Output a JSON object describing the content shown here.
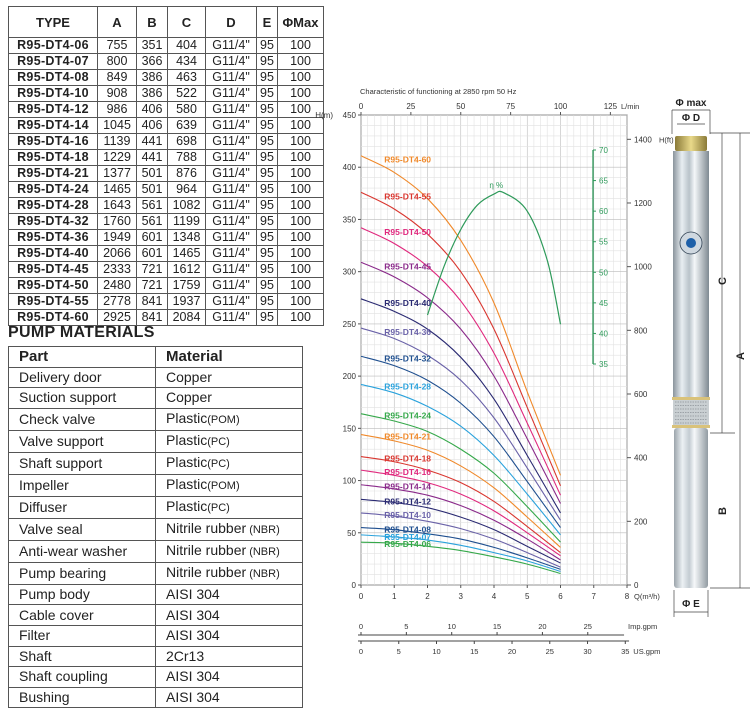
{
  "spec_table": {
    "headers": [
      "TYPE",
      "A",
      "B",
      "C",
      "D",
      "E",
      "ΦMax"
    ],
    "rows": [
      [
        "R95-DT4-06",
        "755",
        "351",
        "404",
        "G11/4\"",
        "95",
        "100"
      ],
      [
        "R95-DT4-07",
        "800",
        "366",
        "434",
        "G11/4\"",
        "95",
        "100"
      ],
      [
        "R95-DT4-08",
        "849",
        "386",
        "463",
        "G11/4\"",
        "95",
        "100"
      ],
      [
        "R95-DT4-10",
        "908",
        "386",
        "522",
        "G11/4\"",
        "95",
        "100"
      ],
      [
        "R95-DT4-12",
        "986",
        "406",
        "580",
        "G11/4\"",
        "95",
        "100"
      ],
      [
        "R95-DT4-14",
        "1045",
        "406",
        "639",
        "G11/4\"",
        "95",
        "100"
      ],
      [
        "R95-DT4-16",
        "1139",
        "441",
        "698",
        "G11/4\"",
        "95",
        "100"
      ],
      [
        "R95-DT4-18",
        "1229",
        "441",
        "788",
        "G11/4\"",
        "95",
        "100"
      ],
      [
        "R95-DT4-21",
        "1377",
        "501",
        "876",
        "G11/4\"",
        "95",
        "100"
      ],
      [
        "R95-DT4-24",
        "1465",
        "501",
        "964",
        "G11/4\"",
        "95",
        "100"
      ],
      [
        "R95-DT4-28",
        "1643",
        "561",
        "1082",
        "G11/4\"",
        "95",
        "100"
      ],
      [
        "R95-DT4-32",
        "1760",
        "561",
        "1199",
        "G11/4\"",
        "95",
        "100"
      ],
      [
        "R95-DT4-36",
        "1949",
        "601",
        "1348",
        "G11/4\"",
        "95",
        "100"
      ],
      [
        "R95-DT4-40",
        "2066",
        "601",
        "1465",
        "G11/4\"",
        "95",
        "100"
      ],
      [
        "R95-DT4-45",
        "2333",
        "721",
        "1612",
        "G11/4\"",
        "95",
        "100"
      ],
      [
        "R95-DT4-50",
        "2480",
        "721",
        "1759",
        "G11/4\"",
        "95",
        "100"
      ],
      [
        "R95-DT4-55",
        "2778",
        "841",
        "1937",
        "G11/4\"",
        "95",
        "100"
      ],
      [
        "R95-DT4-60",
        "2925",
        "841",
        "2084",
        "G11/4\"",
        "95",
        "100"
      ]
    ]
  },
  "materials": {
    "title": "PUMP MATERIALS",
    "headers": [
      "Part",
      "Material"
    ],
    "rows": [
      {
        "part": "Delivery door",
        "material": "Copper",
        "note": ""
      },
      {
        "part": "Suction support",
        "material": "Copper",
        "note": ""
      },
      {
        "part": "Check valve",
        "material": "Plastic",
        "note": "(POM)"
      },
      {
        "part": "Valve support",
        "material": "Plastic",
        "note": "(PC)"
      },
      {
        "part": "Shaft support",
        "material": "Plastic",
        "note": "(PC)"
      },
      {
        "part": "Impeller",
        "material": "Plastic",
        "note": "(POM)"
      },
      {
        "part": "Diffuser",
        "material": "Plastic",
        "note": "(PC)"
      },
      {
        "part": "Valve seal",
        "material": "Nitrile rubber",
        "note": " (NBR)"
      },
      {
        "part": "Anti-wear washer",
        "material": "Nitrile rubber",
        "note": " (NBR)"
      },
      {
        "part": "Pump bearing",
        "material": "Nitrile rubber",
        "note": " (NBR)"
      },
      {
        "part": "Pump  body",
        "material": "AISI 304",
        "note": ""
      },
      {
        "part": "Cable cover",
        "material": "AISI 304",
        "note": ""
      },
      {
        "part": "Filter",
        "material": "AISI 304",
        "note": ""
      },
      {
        "part": "Shaft",
        "material": "2Cr13",
        "note": ""
      },
      {
        "part": "Shaft coupling",
        "material": "AISI 304",
        "note": ""
      },
      {
        "part": "Bushing",
        "material": "AISI 304",
        "note": ""
      }
    ]
  },
  "chart_data": {
    "type": "line",
    "title": "Characteristic of  functioning at 2850 rpm 50 Hz",
    "xlabel": "Q(m³/h)",
    "ylabel": "H(m)",
    "xlim": [
      0,
      8
    ],
    "ylim": [
      0,
      450
    ],
    "x_ticks": [
      0,
      1,
      2,
      3,
      4,
      5,
      6,
      7,
      8
    ],
    "y_ticks": [
      0,
      50,
      100,
      150,
      200,
      250,
      300,
      350,
      400,
      450
    ],
    "top_axis": {
      "label": "L/min",
      "ticks": [
        0,
        25,
        50,
        75,
        100,
        125
      ]
    },
    "right_axis": {
      "label": "H(ft)",
      "ticks": [
        0,
        200,
        400,
        600,
        800,
        1000,
        1200,
        1400
      ]
    },
    "efficiency_axis": {
      "label": "η %",
      "ticks": [
        35,
        40,
        45,
        50,
        55,
        60,
        65,
        70
      ]
    },
    "bottom_scales": [
      {
        "label": "Imp.gpm",
        "ticks": [
          0,
          5,
          10,
          15,
          20,
          25
        ]
      },
      {
        "label": "US.gpm",
        "ticks": [
          0,
          5,
          10,
          15,
          20,
          25,
          30,
          35
        ]
      }
    ],
    "grid": true,
    "x": [
      0,
      1,
      2,
      3,
      4,
      5,
      6
    ],
    "series": [
      {
        "name": "R95-DT4-60",
        "color": "#f0892a",
        "values": [
          411,
          395,
          370,
          330,
          270,
          185,
          105
        ]
      },
      {
        "name": "R95-DT4-55",
        "color": "#d9362f",
        "values": [
          376,
          360,
          336,
          300,
          245,
          170,
          95
        ]
      },
      {
        "name": "R95-DT4-50",
        "color": "#e0287d",
        "values": [
          342,
          327,
          305,
          272,
          222,
          155,
          86
        ]
      },
      {
        "name": "R95-DT4-45",
        "color": "#8a2a8a",
        "values": [
          309,
          295,
          275,
          245,
          200,
          140,
          78
        ]
      },
      {
        "name": "R95-DT4-40",
        "color": "#2a2a72",
        "values": [
          274,
          262,
          245,
          218,
          178,
          124,
          69
        ]
      },
      {
        "name": "R95-DT4-36",
        "color": "#6a62a8",
        "values": [
          246,
          236,
          220,
          196,
          160,
          112,
          62
        ]
      },
      {
        "name": "R95-DT4-32",
        "color": "#1f4f8f",
        "values": [
          219,
          210,
          196,
          174,
          142,
          99,
          55
        ]
      },
      {
        "name": "R95-DT4-28",
        "color": "#2aa2dc",
        "values": [
          192,
          184,
          171,
          152,
          124,
          87,
          48
        ]
      },
      {
        "name": "R95-DT4-24",
        "color": "#35a84a",
        "values": [
          164,
          157,
          147,
          130,
          107,
          75,
          41
        ]
      },
      {
        "name": "R95-DT4-21",
        "color": "#f0892a",
        "values": [
          144,
          138,
          129,
          114,
          93,
          65,
          36
        ]
      },
      {
        "name": "R95-DT4-18",
        "color": "#d9362f",
        "values": [
          123,
          118,
          110,
          98,
          80,
          56,
          31
        ]
      },
      {
        "name": "R95-DT4-16",
        "color": "#e0287d",
        "values": [
          110,
          105,
          98,
          87,
          71,
          50,
          28
        ]
      },
      {
        "name": "R95-DT4-14",
        "color": "#8a2a8a",
        "values": [
          96,
          92,
          86,
          76,
          62,
          44,
          24
        ]
      },
      {
        "name": "R95-DT4-12",
        "color": "#2a2a72",
        "values": [
          82,
          79,
          74,
          65,
          53,
          37,
          21
        ]
      },
      {
        "name": "R95-DT4-10",
        "color": "#6a62a8",
        "values": [
          69,
          66,
          61,
          54,
          44,
          31,
          17
        ]
      },
      {
        "name": "R95-DT4-08",
        "color": "#1f4f8f",
        "values": [
          55,
          53,
          49,
          44,
          36,
          26,
          15
        ]
      },
      {
        "name": "R95-DT4-07",
        "color": "#2aa2dc",
        "values": [
          48,
          46,
          43,
          38,
          31,
          23,
          13
        ]
      },
      {
        "name": "R95-DT4-06",
        "color": "#35a84a",
        "values": [
          41,
          40,
          37,
          33,
          27,
          20,
          11
        ]
      }
    ],
    "efficiency_curve": {
      "name": "η %",
      "color": "#2e9a5a",
      "x": [
        2.0,
        2.5,
        3.0,
        3.5,
        4.0,
        4.3,
        5.0,
        5.6,
        6.0
      ],
      "values": [
        43,
        51,
        57,
        61,
        62.8,
        63,
        60,
        52,
        41.5
      ]
    }
  },
  "pump_drawing": {
    "labels": {
      "phi_max": "Φ max",
      "phi_d": "Φ D",
      "c": "C",
      "a": "A",
      "b": "B",
      "phi_e": "Φ E"
    }
  }
}
